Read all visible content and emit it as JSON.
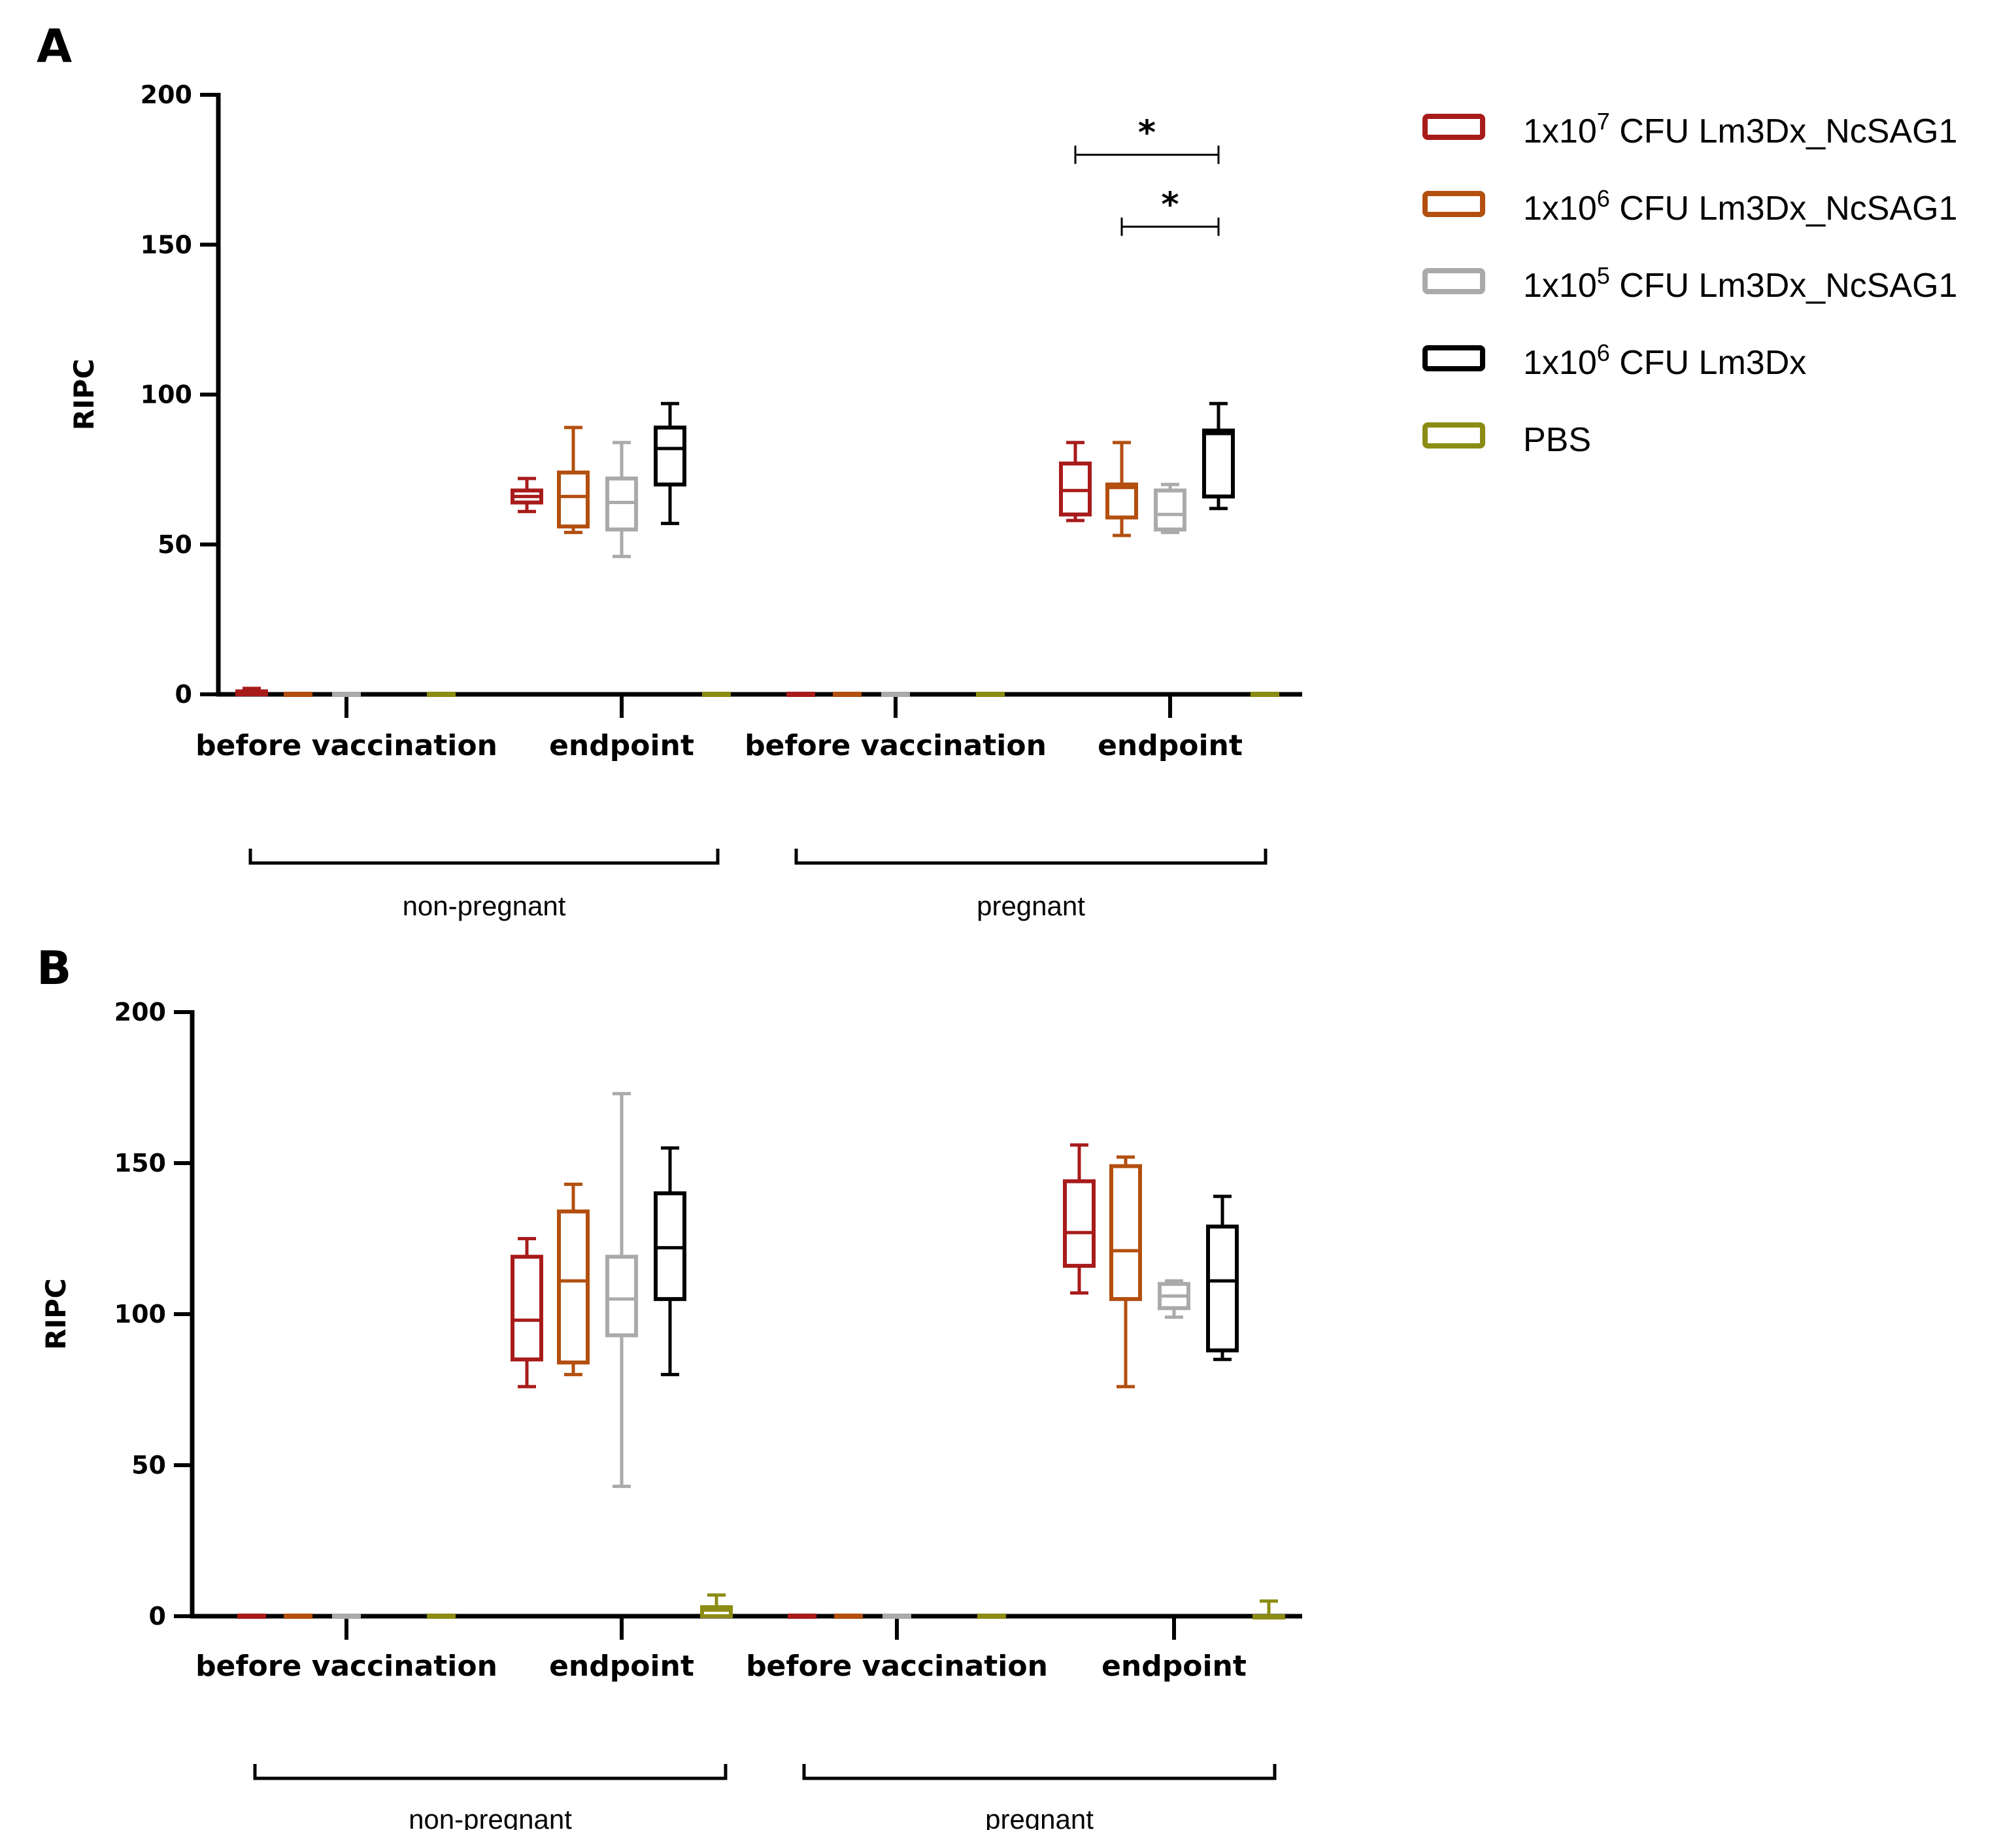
{
  "legend": [
    {
      "pre": "1x10",
      "exp": "7",
      "post": " CFU Lm3Dx_NcSAG1",
      "color": "#a81b1b"
    },
    {
      "pre": "1x10",
      "exp": "6",
      "post": " CFU Lm3Dx_NcSAG1",
      "color": "#b34f0f"
    },
    {
      "pre": "1x10",
      "exp": "5",
      "post": " CFU Lm3Dx_NcSAG1",
      "color": "#aaaaaa"
    },
    {
      "pre": "1x10",
      "exp": "6",
      "post": " CFU Lm3Dx",
      "color": "#000000"
    },
    {
      "pre": "PBS",
      "exp": "",
      "post": "",
      "color": "#8c8c14"
    }
  ],
  "chart_data": [
    {
      "type": "box",
      "panel": "A",
      "ylabel": "RIPC",
      "ylim": [
        0,
        200
      ],
      "yticks": [
        0,
        50,
        100,
        150,
        200
      ],
      "categories": [
        "before vaccination",
        "endpoint",
        "before vaccination",
        "endpoint"
      ],
      "groups": [
        {
          "label": "non-pregnant",
          "categories": [
            0,
            1
          ]
        },
        {
          "label": "pregnant",
          "categories": [
            2,
            3
          ]
        }
      ],
      "series_names": [
        "1x10^7 CFU Lm3Dx_NcSAG1",
        "1x10^6 CFU Lm3Dx_NcSAG1",
        "1x10^5 CFU Lm3Dx_NcSAG1",
        "1x10^6 CFU Lm3Dx",
        "PBS"
      ],
      "boxes": [
        [
          [
            0,
            0,
            0,
            1,
            2
          ],
          [
            0,
            0,
            0,
            0,
            0
          ],
          [
            0,
            0,
            0,
            0,
            0
          ],
          null,
          [
            0,
            0,
            0,
            0,
            0
          ]
        ],
        [
          [
            61,
            64,
            66,
            68,
            72
          ],
          [
            54,
            56,
            66,
            74,
            89
          ],
          [
            46,
            55,
            64,
            72,
            84
          ],
          [
            57,
            70,
            82,
            89,
            97
          ],
          [
            0,
            0,
            0,
            0,
            0
          ]
        ],
        [
          [
            0,
            0,
            0,
            0,
            0
          ],
          [
            0,
            0,
            0,
            0,
            0
          ],
          [
            0,
            0,
            0,
            0,
            0
          ],
          null,
          [
            0,
            0,
            0,
            0,
            0
          ]
        ],
        [
          [
            58,
            60,
            68,
            77,
            84
          ],
          [
            53,
            59,
            69,
            70,
            84
          ],
          [
            54,
            55,
            60,
            68,
            70
          ],
          [
            62,
            66,
            87,
            88,
            97
          ],
          [
            0,
            0,
            0,
            0,
            0
          ]
        ]
      ],
      "significance": [
        {
          "from_cat": 3,
          "from_series": 0,
          "to_cat": 3,
          "to_series": 3,
          "y": 180,
          "label": "*"
        },
        {
          "from_cat": 3,
          "from_series": 1,
          "to_cat": 3,
          "to_series": 3,
          "y": 156,
          "label": "*"
        }
      ]
    },
    {
      "type": "box",
      "panel": "B",
      "ylabel": "RIPC",
      "ylim": [
        0,
        200
      ],
      "yticks": [
        0,
        50,
        100,
        150,
        200
      ],
      "categories": [
        "before vaccination",
        "endpoint",
        "before vaccination",
        "endpoint"
      ],
      "groups": [
        {
          "label": "non-pregnant",
          "categories": [
            0,
            1
          ]
        },
        {
          "label": "pregnant",
          "categories": [
            2,
            3
          ]
        }
      ],
      "series_names": [
        "1x10^7 CFU Lm3Dx_NcSAG1",
        "1x10^6 CFU Lm3Dx_NcSAG1",
        "1x10^5 CFU Lm3Dx_NcSAG1",
        "1x10^6 CFU Lm3Dx",
        "PBS"
      ],
      "boxes": [
        [
          [
            0,
            0,
            0,
            0,
            0
          ],
          [
            0,
            0,
            0,
            0,
            0
          ],
          [
            0,
            0,
            0,
            0,
            0
          ],
          null,
          [
            0,
            0,
            0,
            0,
            0
          ]
        ],
        [
          [
            76,
            85,
            98,
            119,
            125
          ],
          [
            80,
            84,
            111,
            134,
            143
          ],
          [
            43,
            93,
            105,
            119,
            173
          ],
          [
            80,
            105,
            122,
            140,
            155
          ],
          [
            0,
            0,
            2,
            3,
            7
          ]
        ],
        [
          [
            0,
            0,
            0,
            0,
            0
          ],
          [
            0,
            0,
            0,
            0,
            0
          ],
          [
            0,
            0,
            0,
            0,
            0
          ],
          null,
          [
            0,
            0,
            0,
            0,
            0
          ]
        ],
        [
          [
            107,
            116,
            127,
            144,
            156
          ],
          [
            76,
            105,
            121,
            149,
            152
          ],
          [
            99,
            102,
            106,
            110,
            111
          ],
          [
            85,
            88,
            111,
            129,
            139
          ],
          [
            0,
            0,
            0,
            0,
            5
          ]
        ]
      ],
      "significance": []
    }
  ]
}
